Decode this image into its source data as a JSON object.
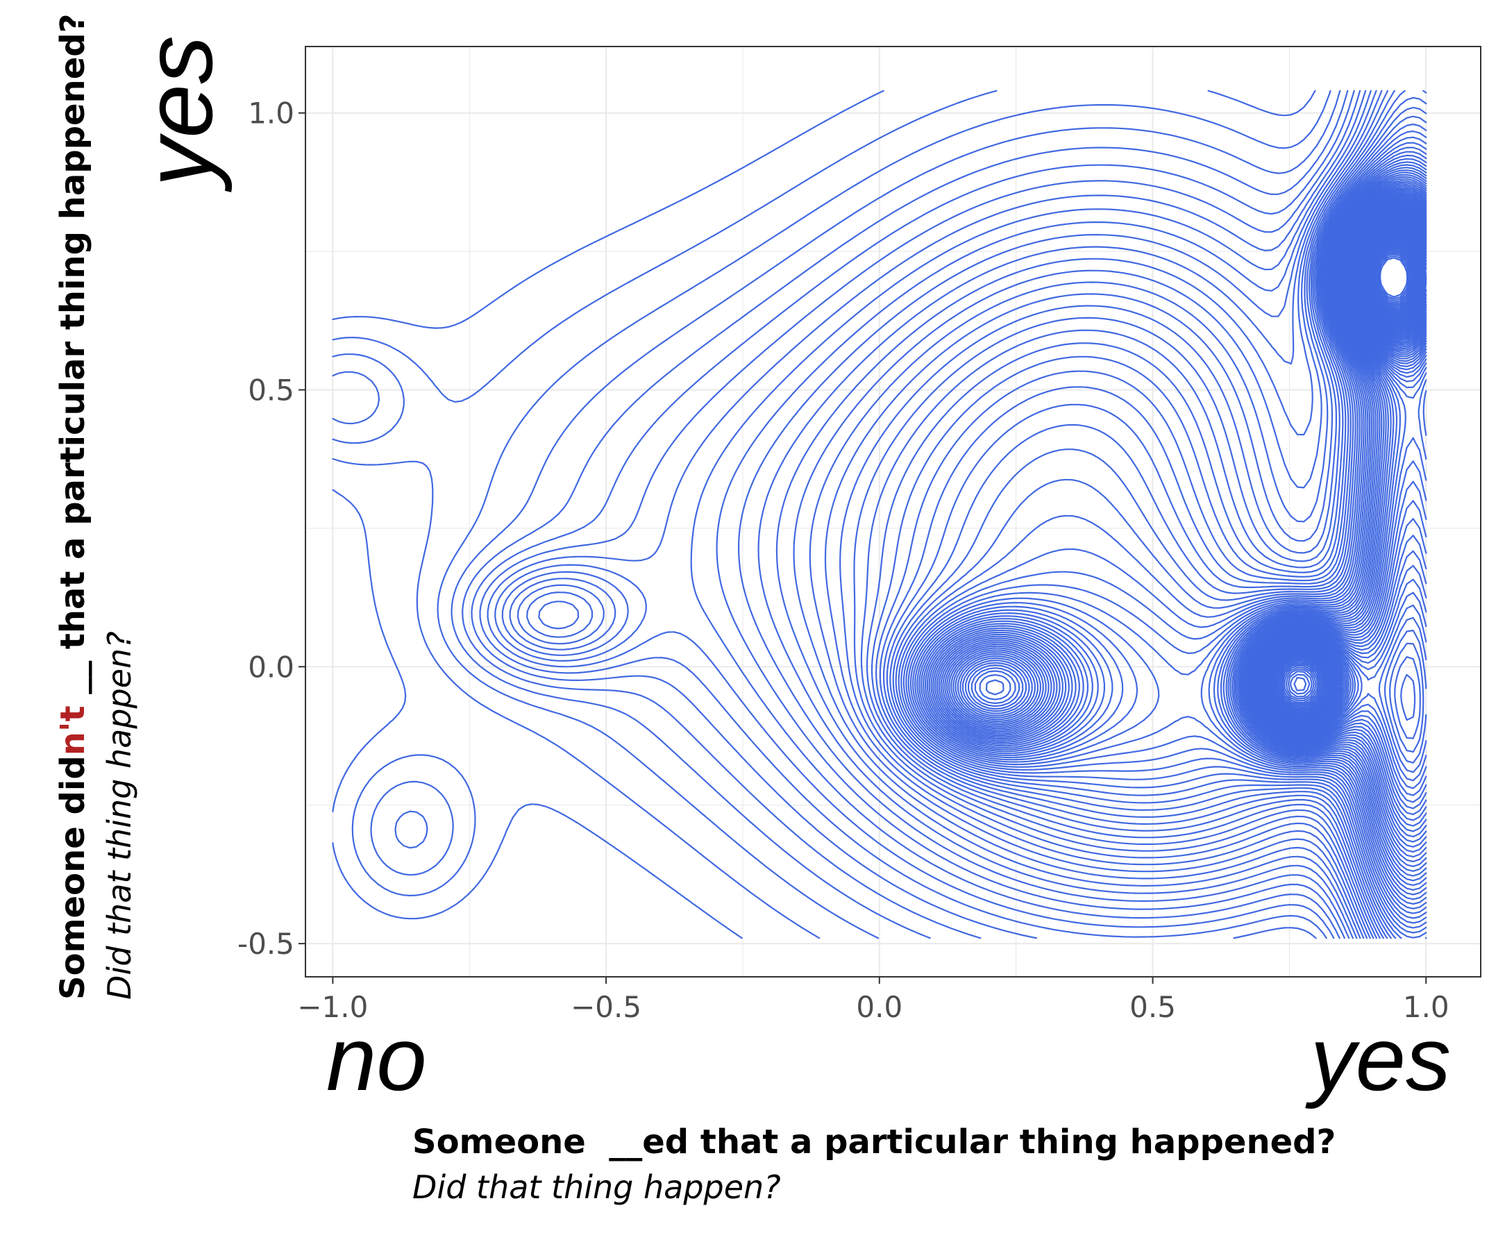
{
  "chart_data": {
    "type": "contour",
    "x_ticks": [
      "−1.0",
      "−0.5",
      "0.0",
      "0.5",
      "1.0"
    ],
    "y_ticks": [
      "-0.5",
      "0.0",
      "0.5",
      "1.0"
    ],
    "xlim": [
      -1.05,
      1.1
    ],
    "ylim": [
      -0.56,
      1.12
    ],
    "grid": true,
    "line_color": "#4169e1",
    "contour_peaks": [
      {
        "x": 0.93,
        "y": 0.71,
        "relative_density": 1.0
      },
      {
        "x": 0.77,
        "y": -0.03,
        "relative_density": 0.95
      },
      {
        "x": 0.2,
        "y": -0.04,
        "relative_density": 0.55
      },
      {
        "x": -0.6,
        "y": 0.09,
        "relative_density": 0.15
      }
    ],
    "x_end_words": {
      "low": "no",
      "high": "yes"
    },
    "y_end_words": {
      "high": "yes"
    },
    "xlabel": {
      "question": "Someone  __ed that a particular thing happened?",
      "subquestion": "Did that thing happen?"
    },
    "ylabel": {
      "question_part1": "Someone did",
      "question_negation": "n't",
      "question_part2": " __ that a particular thing happened?",
      "subquestion": "Did that thing happen?"
    }
  }
}
